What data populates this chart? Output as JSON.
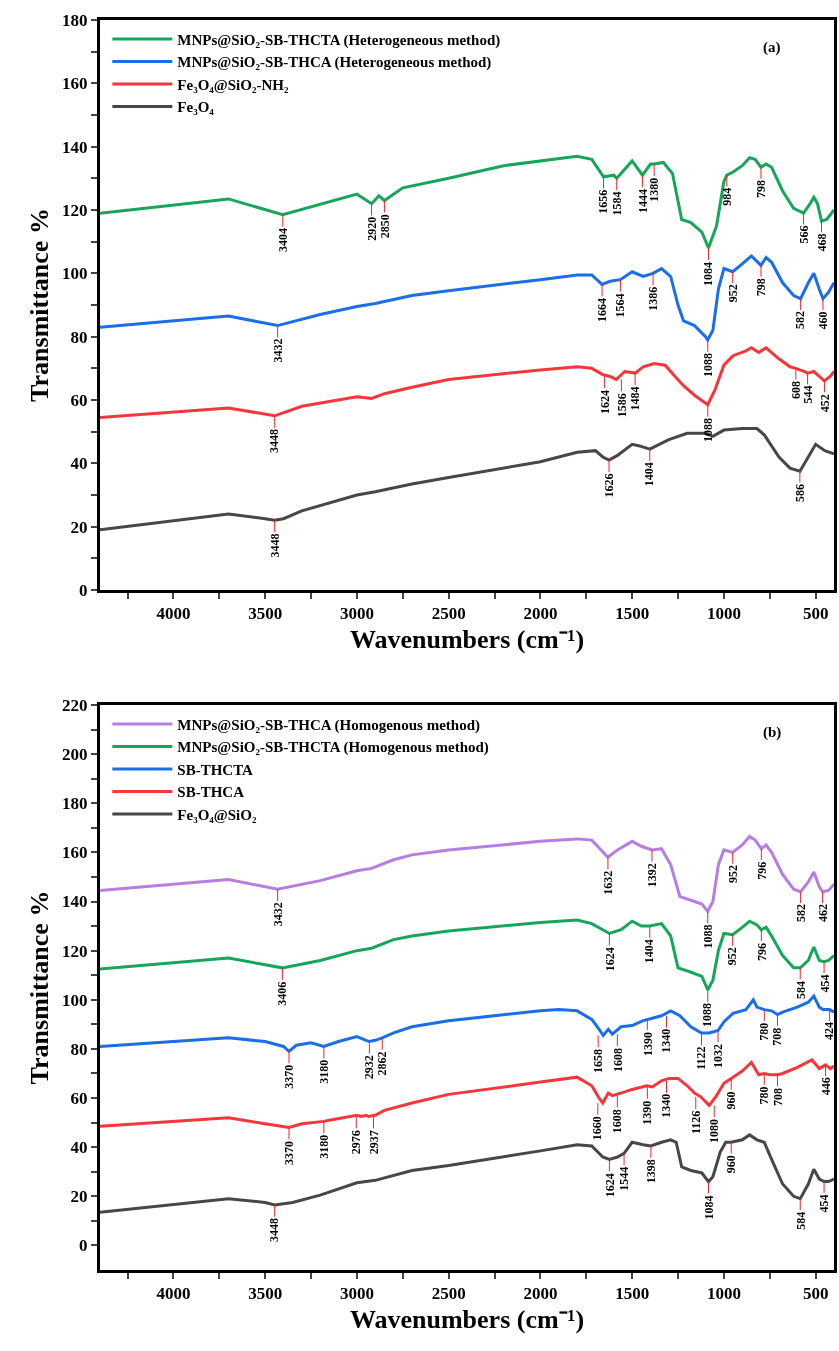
{
  "chart_data": [
    {
      "type": "line",
      "xlabel": "Wavenumbers (cm⁻¹)",
      "ylabel": "Transmittance %",
      "xlim": [
        4400,
        400
      ],
      "xticks": [
        {
          "value": 4250,
          "label": null
        },
        4000,
        {
          "value": 3750,
          "label": null
        },
        3500,
        {
          "value": 3250,
          "label": null
        },
        3000,
        {
          "value": 2750,
          "label": null
        },
        2500,
        {
          "value": 2250,
          "label": null
        },
        2000,
        {
          "value": 1750,
          "label": null
        },
        1500,
        {
          "value": 1250,
          "label": null
        },
        1000,
        {
          "value": 750,
          "label": null
        },
        500
      ],
      "ylim": [
        0,
        180
      ],
      "yticks": [
        0,
        {
          "value": 10,
          "label": null
        },
        20,
        {
          "value": 30,
          "label": null
        },
        40,
        {
          "value": 50,
          "label": null
        },
        60,
        {
          "value": 70,
          "label": null
        },
        80,
        {
          "value": 90,
          "label": null
        },
        100,
        {
          "value": 110,
          "label": null
        },
        120,
        {
          "value": 130,
          "label": null
        },
        140,
        {
          "value": 150,
          "label": null
        },
        160,
        {
          "value": 170,
          "label": null
        },
        180
      ],
      "legend": "top left",
      "series": [
        {
          "name": "MNPs@SiO₂-SB-THCTA (Heterogeneous method)",
          "color": "#16a65a",
          "x": [
            4400,
            3700,
            3404,
            3000,
            2920,
            2880,
            2850,
            2750,
            2500,
            2200,
            1800,
            1720,
            1656,
            1600,
            1584,
            1500,
            1444,
            1400,
            1380,
            1330,
            1280,
            1230,
            1180,
            1120,
            1084,
            1040,
            1000,
            984,
            950,
            900,
            860,
            830,
            798,
            770,
            740,
            680,
            620,
            566,
            530,
            510,
            490,
            468,
            440,
            400
          ],
          "values": [
            119,
            123.5,
            118.5,
            125,
            122,
            124.5,
            123,
            127,
            130,
            134,
            137,
            136,
            130.5,
            131,
            130,
            135.5,
            131,
            134.5,
            134.5,
            135,
            131.5,
            117,
            116,
            113,
            108,
            115,
            129,
            131,
            132,
            134,
            136.5,
            136,
            133.5,
            134.5,
            133.5,
            126,
            120.5,
            119,
            122,
            124,
            122,
            116.5,
            117,
            120
          ]
        },
        {
          "name": "MNPs@SiO₂-SB-THCA (Heterogeneous method)",
          "color": "#1a6ee8",
          "x": [
            4400,
            3700,
            3432,
            3200,
            3000,
            2900,
            2700,
            2500,
            2000,
            1800,
            1720,
            1664,
            1620,
            1564,
            1500,
            1440,
            1386,
            1340,
            1290,
            1250,
            1220,
            1160,
            1100,
            1088,
            1060,
            1030,
            1000,
            952,
            900,
            850,
            798,
            770,
            740,
            680,
            620,
            582,
            540,
            510,
            480,
            460,
            430,
            400
          ],
          "values": [
            83,
            86.5,
            83.5,
            87,
            89.5,
            90.5,
            93,
            94.5,
            98,
            99.5,
            99.5,
            96.5,
            97.5,
            98,
            100.5,
            99,
            100,
            101.5,
            99,
            90,
            85,
            83.5,
            80,
            79,
            82,
            95,
            101.5,
            100.5,
            103,
            105.5,
            102.5,
            105,
            103.5,
            97,
            93,
            92,
            97,
            100,
            95,
            92,
            94,
            97
          ]
        },
        {
          "name": "Fe₃O₄@SiO₂-NH₂",
          "color": "#f5373c",
          "x": [
            4400,
            3700,
            3448,
            3300,
            3000,
            2920,
            2850,
            2700,
            2500,
            2000,
            1800,
            1720,
            1660,
            1624,
            1586,
            1540,
            1484,
            1440,
            1380,
            1320,
            1260,
            1220,
            1160,
            1088,
            1050,
            1000,
            950,
            880,
            850,
            810,
            770,
            700,
            640,
            608,
            560,
            544,
            510,
            480,
            452,
            420,
            400
          ],
          "values": [
            54.5,
            57.5,
            55,
            58,
            61,
            60.5,
            62,
            64,
            66.5,
            69.5,
            70.5,
            70,
            68,
            67.5,
            66.5,
            69,
            68.5,
            70.5,
            71.5,
            71,
            67,
            64.5,
            61.5,
            58.5,
            63,
            71,
            74,
            75.5,
            76.5,
            75,
            76.5,
            73,
            70.5,
            70,
            69,
            68.5,
            69,
            67.5,
            66,
            67.5,
            69
          ]
        },
        {
          "name": "Fe₃O₄",
          "color": "#474747",
          "x": [
            4400,
            3700,
            3500,
            3448,
            3400,
            3300,
            3000,
            2900,
            2700,
            2500,
            2000,
            1800,
            1700,
            1660,
            1626,
            1580,
            1500,
            1460,
            1404,
            1300,
            1200,
            1100,
            1060,
            1000,
            900,
            820,
            780,
            700,
            640,
            586,
            540,
            500,
            450,
            400
          ],
          "values": [
            19,
            24,
            22.5,
            22,
            22.5,
            25,
            30,
            31,
            33.5,
            35.5,
            40.5,
            43.5,
            44,
            42,
            41,
            42.5,
            46,
            45.5,
            44.5,
            47.5,
            49.5,
            49.5,
            48.5,
            50.5,
            51,
            51,
            49,
            42,
            38.5,
            37.5,
            42,
            46,
            44,
            43
          ]
        }
      ],
      "annotations": [
        "(a)",
        {
          "text": "3404",
          "x": 3404,
          "y": 118.5
        },
        {
          "text": "2920",
          "x": 2920,
          "y": 122
        },
        {
          "text": "2850",
          "x": 2850,
          "y": 123
        },
        {
          "text": "1656",
          "x": 1656,
          "y": 130.5
        },
        {
          "text": "1584",
          "x": 1584,
          "y": 130
        },
        {
          "text": "1444",
          "x": 1444,
          "y": 131
        },
        {
          "text": "1380",
          "x": 1380,
          "y": 134.5
        },
        {
          "text": "1084",
          "x": 1084,
          "y": 108
        },
        {
          "text": "984",
          "x": 984,
          "y": 131
        },
        {
          "text": "798",
          "x": 798,
          "y": 133.5
        },
        {
          "text": "566",
          "x": 566,
          "y": 119
        },
        {
          "text": "468",
          "x": 468,
          "y": 116.5
        },
        {
          "text": "3432",
          "x": 3432,
          "y": 83.5
        },
        {
          "text": "1664",
          "x": 1664,
          "y": 96.5
        },
        {
          "text": "1564",
          "x": 1564,
          "y": 98
        },
        {
          "text": "1386",
          "x": 1386,
          "y": 100
        },
        {
          "text": "1088",
          "x": 1088,
          "y": 79
        },
        {
          "text": "952",
          "x": 952,
          "y": 100.5
        },
        {
          "text": "798",
          "x": 798,
          "y": 102.5
        },
        {
          "text": "582",
          "x": 582,
          "y": 92
        },
        {
          "text": "460",
          "x": 460,
          "y": 92
        },
        {
          "text": "3448",
          "x": 3448,
          "y": 55
        },
        {
          "text": "1624",
          "x": 1624,
          "y": 67.5
        },
        {
          "text": "1586",
          "x": 1586,
          "y": 66.5
        },
        {
          "text": "1484",
          "x": 1484,
          "y": 68.5
        },
        {
          "text": "1088",
          "x": 1088,
          "y": 58.5
        },
        {
          "text": "608",
          "x": 608,
          "y": 70
        },
        {
          "text": "544",
          "x": 544,
          "y": 68.5
        },
        {
          "text": "452",
          "x": 452,
          "y": 66
        },
        {
          "text": "3448",
          "x": 3448,
          "y": 22
        },
        {
          "text": "1626",
          "x": 1626,
          "y": 41
        },
        {
          "text": "1404",
          "x": 1404,
          "y": 44.5
        },
        {
          "text": "586",
          "x": 586,
          "y": 37.5
        }
      ]
    },
    {
      "type": "line",
      "xlabel": "Wavenumbers (cm⁻¹)",
      "ylabel": "Transmittance %",
      "xlim": [
        4400,
        400
      ],
      "xticks": [
        {
          "value": 4250,
          "label": null
        },
        4000,
        {
          "value": 3750,
          "label": null
        },
        3500,
        {
          "value": 3250,
          "label": null
        },
        3000,
        {
          "value": 2750,
          "label": null
        },
        2500,
        {
          "value": 2250,
          "label": null
        },
        2000,
        {
          "value": 1750,
          "label": null
        },
        1500,
        {
          "value": 1250,
          "label": null
        },
        1000,
        {
          "value": 750,
          "label": null
        },
        500
      ],
      "ylim": [
        -10,
        220
      ],
      "yticks": [
        0,
        {
          "value": 10,
          "label": null
        },
        20,
        {
          "value": 30,
          "label": null
        },
        40,
        {
          "value": 50,
          "label": null
        },
        60,
        {
          "value": 70,
          "label": null
        },
        80,
        {
          "value": 90,
          "label": null
        },
        100,
        {
          "value": 110,
          "label": null
        },
        120,
        {
          "value": 130,
          "label": null
        },
        140,
        {
          "value": 150,
          "label": null
        },
        160,
        {
          "value": 170,
          "label": null
        },
        180,
        {
          "value": 190,
          "label": null
        },
        200,
        {
          "value": 210,
          "label": null
        },
        220
      ],
      "legend": "top left",
      "series": [
        {
          "name": "MNPs@SiO₂-SB-THCA (Homogenous method)",
          "color": "#b67de3",
          "x": [
            4400,
            3700,
            3432,
            3200,
            3000,
            2920,
            2800,
            2700,
            2500,
            2000,
            1800,
            1720,
            1632,
            1580,
            1500,
            1450,
            1392,
            1340,
            1290,
            1240,
            1180,
            1120,
            1088,
            1060,
            1030,
            1000,
            952,
            900,
            860,
            830,
            796,
            770,
            740,
            680,
            620,
            582,
            540,
            510,
            480,
            462,
            430,
            400
          ],
          "values": [
            144.5,
            149,
            145,
            148.5,
            152.5,
            153.5,
            157,
            159,
            161,
            164.5,
            165.5,
            165,
            158,
            161,
            164.5,
            162.5,
            161,
            161.5,
            155,
            142,
            140.5,
            139,
            136,
            140,
            155,
            161,
            160,
            163,
            166.5,
            165,
            161.5,
            163,
            160,
            151,
            145,
            144,
            148,
            152,
            146,
            144,
            144.5,
            147
          ]
        },
        {
          "name": "MNPs@SiO₂-SB-THCTA (Homogenous method)",
          "color": "#16a65a",
          "x": [
            4400,
            3700,
            3406,
            3200,
            3000,
            2920,
            2800,
            2700,
            2500,
            2000,
            1800,
            1720,
            1624,
            1560,
            1500,
            1450,
            1404,
            1340,
            1290,
            1250,
            1190,
            1120,
            1088,
            1060,
            1030,
            1000,
            952,
            900,
            860,
            820,
            796,
            770,
            740,
            680,
            620,
            584,
            540,
            510,
            480,
            454,
            430,
            400
          ],
          "values": [
            112.5,
            117,
            113,
            116,
            120,
            121,
            124.5,
            126,
            128,
            131.5,
            132.5,
            131,
            127,
            128.5,
            132,
            130,
            130,
            131,
            126,
            113,
            111.5,
            109.5,
            104,
            108,
            120,
            127,
            126.5,
            129.5,
            132,
            130.5,
            128.5,
            129.5,
            126,
            118,
            113,
            113,
            116,
            121.5,
            116,
            115.5,
            116,
            118
          ]
        },
        {
          "name": "SB-THCTA",
          "color": "#1a6ee8",
          "x": [
            4400,
            3700,
            3500,
            3400,
            3370,
            3330,
            3250,
            3180,
            3100,
            3000,
            2950,
            2932,
            2900,
            2862,
            2800,
            2700,
            2500,
            2000,
            1900,
            1800,
            1720,
            1680,
            1658,
            1630,
            1608,
            1560,
            1500,
            1440,
            1390,
            1340,
            1290,
            1240,
            1180,
            1122,
            1080,
            1032,
            1000,
            950,
            880,
            840,
            820,
            780,
            740,
            708,
            680,
            600,
            540,
            510,
            480,
            460,
            424,
            400
          ],
          "values": [
            81,
            84.5,
            83,
            81,
            79,
            81.5,
            82.5,
            81,
            83,
            85,
            83.5,
            83,
            83.5,
            84.5,
            86.5,
            89,
            91.5,
            95.5,
            96,
            95.5,
            92,
            88,
            85.5,
            88,
            86,
            89,
            89.5,
            91.5,
            92.5,
            93.5,
            95.5,
            93.5,
            89,
            86.5,
            86.5,
            87.5,
            91,
            94.5,
            96,
            100,
            97,
            96,
            95.5,
            94,
            95,
            97,
            99,
            101.5,
            97,
            96,
            96,
            95
          ]
        },
        {
          "name": "SB-THCA",
          "color": "#f5373c",
          "x": [
            4400,
            3700,
            3500,
            3370,
            3300,
            3180,
            3150,
            3000,
            2976,
            2950,
            2937,
            2900,
            2850,
            2700,
            2500,
            2000,
            1800,
            1720,
            1680,
            1660,
            1630,
            1608,
            1540,
            1500,
            1420,
            1390,
            1340,
            1300,
            1250,
            1200,
            1160,
            1126,
            1080,
            1040,
            1000,
            960,
            900,
            850,
            810,
            780,
            750,
            708,
            680,
            600,
            520,
            480,
            446,
            420,
            400
          ],
          "values": [
            48.5,
            52,
            49.5,
            48,
            49.5,
            50.5,
            51,
            53,
            52.5,
            53,
            52.5,
            53,
            55,
            58,
            61.5,
            66.5,
            68.5,
            65,
            60,
            58,
            62,
            61,
            62.5,
            63.5,
            65,
            64.5,
            67,
            68,
            68,
            65,
            62,
            60.5,
            57,
            61,
            66,
            68,
            71,
            74.5,
            69.5,
            70,
            69.5,
            69.5,
            70,
            72.5,
            75.5,
            72,
            73.5,
            72,
            73
          ]
        },
        {
          "name": "Fe₃O₄@SiO₂",
          "color": "#474747",
          "x": [
            4400,
            3700,
            3500,
            3448,
            3350,
            3200,
            3000,
            2900,
            2700,
            2500,
            2000,
            1800,
            1720,
            1660,
            1624,
            1580,
            1544,
            1500,
            1440,
            1398,
            1340,
            1290,
            1260,
            1230,
            1180,
            1120,
            1084,
            1060,
            1020,
            990,
            960,
            900,
            860,
            820,
            780,
            740,
            680,
            620,
            584,
            540,
            510,
            480,
            454,
            430,
            400
          ],
          "values": [
            13.5,
            19,
            17.5,
            16.5,
            17.5,
            20.5,
            25.5,
            26.5,
            30.5,
            32.5,
            38.5,
            41,
            40.5,
            36,
            35,
            36,
            37.5,
            42,
            41,
            40.5,
            42,
            43,
            42,
            32,
            30.5,
            29.5,
            26,
            28,
            38,
            42,
            42,
            43,
            45,
            43,
            42,
            35,
            25,
            20,
            19,
            25,
            31,
            27,
            26,
            26,
            27
          ]
        }
      ],
      "annotations": [
        "(b)",
        {
          "text": "3432",
          "x": 3432,
          "y": 145
        },
        {
          "text": "1632",
          "x": 1632,
          "y": 158
        },
        {
          "text": "1392",
          "x": 1392,
          "y": 161
        },
        {
          "text": "1088",
          "x": 1088,
          "y": 136
        },
        {
          "text": "952",
          "x": 952,
          "y": 160
        },
        {
          "text": "796",
          "x": 796,
          "y": 161.5
        },
        {
          "text": "582",
          "x": 582,
          "y": 144
        },
        {
          "text": "462",
          "x": 462,
          "y": 144
        },
        {
          "text": "3406",
          "x": 3406,
          "y": 113
        },
        {
          "text": "1624",
          "x": 1624,
          "y": 127
        },
        {
          "text": "1404",
          "x": 1404,
          "y": 130
        },
        {
          "text": "1088",
          "x": 1088,
          "y": 104
        },
        {
          "text": "952",
          "x": 952,
          "y": 126.5
        },
        {
          "text": "796",
          "x": 796,
          "y": 128.5
        },
        {
          "text": "584",
          "x": 584,
          "y": 113
        },
        {
          "text": "454",
          "x": 454,
          "y": 115.5
        },
        {
          "text": "3370",
          "x": 3370,
          "y": 79
        },
        {
          "text": "3180",
          "x": 3180,
          "y": 81
        },
        {
          "text": "2932",
          "x": 2932,
          "y": 83
        },
        {
          "text": "2862",
          "x": 2862,
          "y": 84.5
        },
        {
          "text": "1658",
          "x": 1658,
          "y": 85.5
        },
        {
          "text": "1608",
          "x": 1608,
          "y": 86
        },
        {
          "text": "1390",
          "x": 1390,
          "y": 92.5
        },
        {
          "text": "1340",
          "x": 1340,
          "y": 93.5
        },
        {
          "text": "1122",
          "x": 1122,
          "y": 86.5
        },
        {
          "text": "1032",
          "x": 1032,
          "y": 87.5
        },
        {
          "text": "780",
          "x": 780,
          "y": 96
        },
        {
          "text": "708",
          "x": 708,
          "y": 94
        },
        {
          "text": "424",
          "x": 424,
          "y": 96
        },
        {
          "text": "3370",
          "x": 3370,
          "y": 48
        },
        {
          "text": "3180",
          "x": 3180,
          "y": 50.5
        },
        {
          "text": "2976",
          "x": 2976,
          "y": 52.5
        },
        {
          "text": "2937",
          "x": 2937,
          "y": 52.5
        },
        {
          "text": "1660",
          "x": 1660,
          "y": 58
        },
        {
          "text": "1608",
          "x": 1608,
          "y": 61
        },
        {
          "text": "1390",
          "x": 1390,
          "y": 64.5
        },
        {
          "text": "1340",
          "x": 1340,
          "y": 67
        },
        {
          "text": "1126",
          "x": 1126,
          "y": 60.5
        },
        {
          "text": "1080",
          "x": 1080,
          "y": 57
        },
        {
          "text": "960",
          "x": 960,
          "y": 68
        },
        {
          "text": "780",
          "x": 780,
          "y": 70
        },
        {
          "text": "708",
          "x": 708,
          "y": 69.5
        },
        {
          "text": "446",
          "x": 446,
          "y": 73.5
        },
        {
          "text": "3448",
          "x": 3448,
          "y": 16.5
        },
        {
          "text": "1624",
          "x": 1624,
          "y": 35
        },
        {
          "text": "1544",
          "x": 1544,
          "y": 37.5
        },
        {
          "text": "1398",
          "x": 1398,
          "y": 40.5
        },
        {
          "text": "1084",
          "x": 1084,
          "y": 26
        },
        {
          "text": "960",
          "x": 960,
          "y": 42
        },
        {
          "text": "584",
          "x": 584,
          "y": 19
        },
        {
          "text": "454",
          "x": 454,
          "y": 26
        }
      ]
    }
  ]
}
